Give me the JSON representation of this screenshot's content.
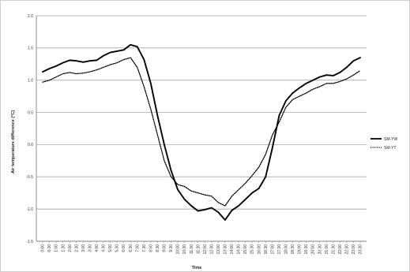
{
  "chart_data": {
    "type": "line",
    "title": "",
    "xlabel": "Time",
    "ylabel": "Air temperature difference (°C)",
    "ylim": [
      -1.5,
      2.0
    ],
    "yticks": [
      "2.0",
      "1.5",
      "1.0",
      "0.5",
      "0.0",
      "-0.5",
      "-1.0",
      "-1.5"
    ],
    "grid": "horizontal",
    "legend_position": "right",
    "x": [
      "0:00",
      "0:30",
      "1:00",
      "1:30",
      "2:00",
      "2:30",
      "3:00",
      "3:30",
      "4:00",
      "4:30",
      "5:00",
      "5:30",
      "6:00",
      "6:30",
      "7:00",
      "7:30",
      "8:00",
      "8:30",
      "9:00",
      "9:30",
      "10:00",
      "10:30",
      "11:00",
      "11:30",
      "12:00",
      "12:30",
      "13:00",
      "13:30",
      "14:00",
      "14:30",
      "15:00",
      "15:30",
      "16:00",
      "16:30",
      "17:00",
      "17:30",
      "18:00",
      "18:30",
      "19:00",
      "19:30",
      "20:00",
      "20:30",
      "21:00",
      "21:30",
      "22:00",
      "22:30",
      "23:00",
      "23:30"
    ],
    "series": [
      {
        "name": "SM-YW",
        "style": "solid",
        "color": "#000000",
        "values": [
          1.13,
          1.18,
          1.22,
          1.27,
          1.31,
          1.3,
          1.28,
          1.3,
          1.31,
          1.38,
          1.43,
          1.45,
          1.47,
          1.55,
          1.52,
          1.32,
          0.95,
          0.45,
          0.0,
          -0.4,
          -0.7,
          -0.85,
          -0.95,
          -1.03,
          -1.01,
          -0.98,
          -1.05,
          -1.17,
          -1.02,
          -0.95,
          -0.85,
          -0.75,
          -0.68,
          -0.5,
          -0.05,
          0.45,
          0.68,
          0.8,
          0.88,
          0.95,
          1.0,
          1.05,
          1.08,
          1.07,
          1.12,
          1.2,
          1.3,
          1.35
        ]
      },
      {
        "name": "SM-YT",
        "style": "dotted",
        "color": "#000000",
        "values": [
          0.97,
          1.0,
          1.05,
          1.1,
          1.12,
          1.1,
          1.11,
          1.13,
          1.16,
          1.2,
          1.24,
          1.27,
          1.32,
          1.35,
          1.2,
          0.9,
          0.55,
          0.15,
          -0.25,
          -0.5,
          -0.62,
          -0.65,
          -0.72,
          -0.75,
          -0.78,
          -0.8,
          -0.9,
          -0.95,
          -0.8,
          -0.7,
          -0.6,
          -0.48,
          -0.35,
          -0.15,
          0.15,
          0.35,
          0.58,
          0.7,
          0.75,
          0.8,
          0.86,
          0.9,
          0.95,
          0.95,
          0.98,
          1.02,
          1.08,
          1.15
        ]
      }
    ]
  }
}
